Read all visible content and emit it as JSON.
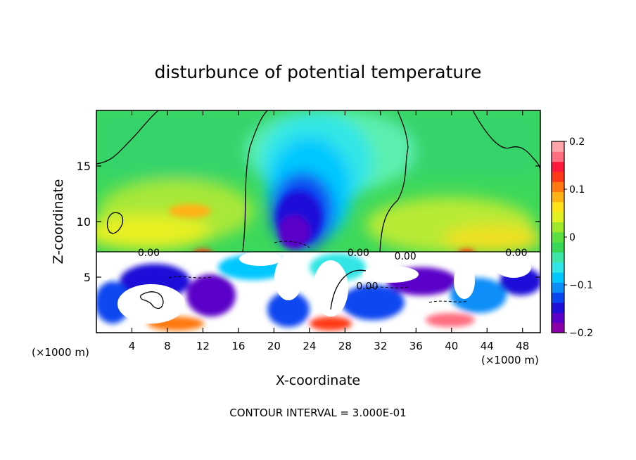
{
  "chart_data": {
    "type": "heatmap",
    "title": "disturbunce of potential temperature",
    "xlabel": "X-coordinate",
    "ylabel": "Z-coordinate",
    "x_unit_note": "(×1000 m)",
    "y_unit_note": "(×1000 m)",
    "xlim": [
      0,
      50
    ],
    "ylim": [
      0,
      20
    ],
    "x_ticks": [
      4,
      8,
      12,
      16,
      20,
      24,
      28,
      32,
      36,
      40,
      44,
      48
    ],
    "y_ticks": [
      5,
      10,
      15
    ],
    "colorbar": {
      "min": -0.2,
      "max": 0.2,
      "ticks": [
        0.2,
        0.1,
        0,
        -0.1,
        -0.2
      ],
      "tick_labels": [
        "0.2",
        "0.1",
        "0",
        "−0.1",
        "−0.2"
      ],
      "colors": [
        "#8b00a8",
        "#5a00c8",
        "#1e10d8",
        "#0a46f0",
        "#0a8ef8",
        "#00c8ff",
        "#30e6e6",
        "#3ce6a8",
        "#38d858",
        "#5ce040",
        "#a0e82a",
        "#e0f020",
        "#ffe41a",
        "#ffb414",
        "#ff7810",
        "#ff3a18",
        "#ff1a3c",
        "#ff6e80",
        "#ffa4a8"
      ]
    },
    "contour_labels": [
      {
        "text": "0.00",
        "x": 5.9,
        "y": 7.2
      },
      {
        "text": "0.00",
        "x": 29.5,
        "y": 7.2
      },
      {
        "text": "0.00",
        "x": 34.8,
        "y": 6.9
      },
      {
        "text": "0.00",
        "x": 47.3,
        "y": 7.2
      },
      {
        "text": "0.00",
        "x": 30.5,
        "y": 4.2
      }
    ],
    "field_features": [
      {
        "label": "cold anomaly core",
        "x": 22.5,
        "z": 10.5,
        "value": -0.2
      },
      {
        "label": "cold plume",
        "x": 23,
        "z": 14,
        "value": -0.1
      },
      {
        "label": "warm band",
        "x": 8,
        "z": 8.5,
        "value": 0.07
      },
      {
        "label": "warm band",
        "x": 42,
        "z": 8.2,
        "value": 0.09
      }
    ]
  },
  "footer": {
    "contour_interval": "CONTOUR INTERVAL = 3.000E-01"
  }
}
